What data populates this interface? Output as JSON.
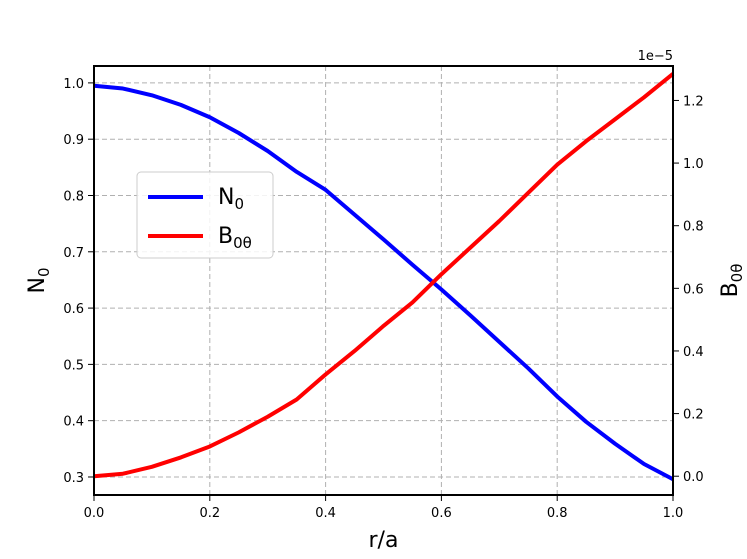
{
  "chart_data": {
    "type": "line",
    "x_label": {
      "main": "r/a"
    },
    "y_left_label": {
      "main": "N",
      "sub": "0"
    },
    "y_right_label": {
      "main": "B",
      "sub": "0θ"
    },
    "right_axis_offset": "1e−5",
    "x_range": [
      0.0,
      1.0
    ],
    "y_left_range": [
      0.268,
      1.03
    ],
    "y_right_range": [
      -0.06,
      1.31
    ],
    "x_ticks": [
      "0.0",
      "0.2",
      "0.4",
      "0.6",
      "0.8",
      "1.0"
    ],
    "y_left_ticks": [
      "0.3",
      "0.4",
      "0.5",
      "0.6",
      "0.7",
      "0.8",
      "0.9",
      "1.0"
    ],
    "y_right_ticks": [
      "0.0",
      "0.2",
      "0.4",
      "0.6",
      "0.8",
      "1.0",
      "1.2"
    ],
    "grid": true,
    "legend_position": "center-left",
    "series": [
      {
        "name_main": "N",
        "name_sub": "0",
        "axis": "left",
        "color": "#0000ff",
        "x": [
          0.0,
          0.05,
          0.1,
          0.15,
          0.2,
          0.25,
          0.3,
          0.35,
          0.4,
          0.45,
          0.5,
          0.55,
          0.6,
          0.65,
          0.7,
          0.75,
          0.8,
          0.85,
          0.9,
          0.95,
          1.0
        ],
        "y": [
          0.995,
          0.99,
          0.978,
          0.961,
          0.939,
          0.911,
          0.879,
          0.842,
          0.81,
          0.766,
          0.722,
          0.677,
          0.633,
          0.587,
          0.54,
          0.493,
          0.443,
          0.398,
          0.359,
          0.323,
          0.296
        ]
      },
      {
        "name_main": "B",
        "name_sub": "0θ",
        "axis": "right",
        "color": "#ff0000",
        "x": [
          0.0,
          0.05,
          0.1,
          0.15,
          0.2,
          0.25,
          0.3,
          0.35,
          0.4,
          0.45,
          0.5,
          0.55,
          0.6,
          0.65,
          0.7,
          0.75,
          0.8,
          0.85,
          0.9,
          0.95,
          1.0
        ],
        "y": [
          0.0,
          0.008,
          0.03,
          0.06,
          0.095,
          0.14,
          0.19,
          0.245,
          0.325,
          0.4,
          0.48,
          0.555,
          0.645,
          0.73,
          0.815,
          0.905,
          0.995,
          1.07,
          1.14,
          1.21,
          1.285
        ]
      }
    ]
  }
}
